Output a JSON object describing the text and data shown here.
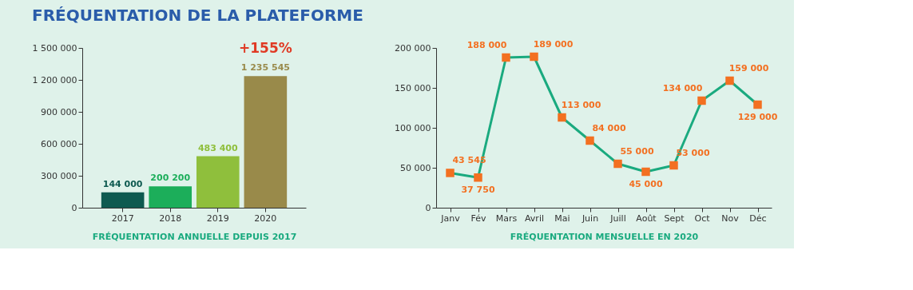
{
  "chart_data": [
    {
      "type": "bar",
      "title": "FRÉQUENTATION DE LA PLATEFORME",
      "xlabel": "FRÉQUENTATION ANNUELLE DEPUIS 2017",
      "categories": [
        "2017",
        "2018",
        "2019",
        "2020"
      ],
      "values": [
        144000,
        200200,
        483400,
        1235545
      ],
      "colors": [
        "#0e5a50",
        "#1cae5a",
        "#8fbf3c",
        "#998a4a"
      ],
      "ylim": [
        0,
        1500000
      ],
      "yticks": [
        0,
        300000,
        600000,
        900000,
        1200000,
        1500000
      ],
      "data_labels": true,
      "grid": false,
      "legend": false,
      "annotations": [
        {
          "text": "+155%",
          "x": "2020",
          "y": 1235545
        }
      ]
    },
    {
      "type": "line",
      "xlabel": "FRÉQUENTATION MENSUELLE EN 2020",
      "categories": [
        "Janv",
        "Fév",
        "Mars",
        "Avril",
        "Mai",
        "Juin",
        "Juill",
        "Août",
        "Sept",
        "Oct",
        "Nov",
        "Déc"
      ],
      "series": [
        {
          "color": "#1aaa7f",
          "values": [
            43545,
            37750,
            188000,
            189000,
            113000,
            84000,
            55000,
            45000,
            53000,
            134000,
            159000,
            129000
          ]
        }
      ],
      "marker": "square",
      "ylim": [
        0,
        200000
      ],
      "yticks": [
        0,
        50000,
        100000,
        150000,
        200000
      ],
      "data_labels": true,
      "grid": false,
      "legend": false
    }
  ]
}
